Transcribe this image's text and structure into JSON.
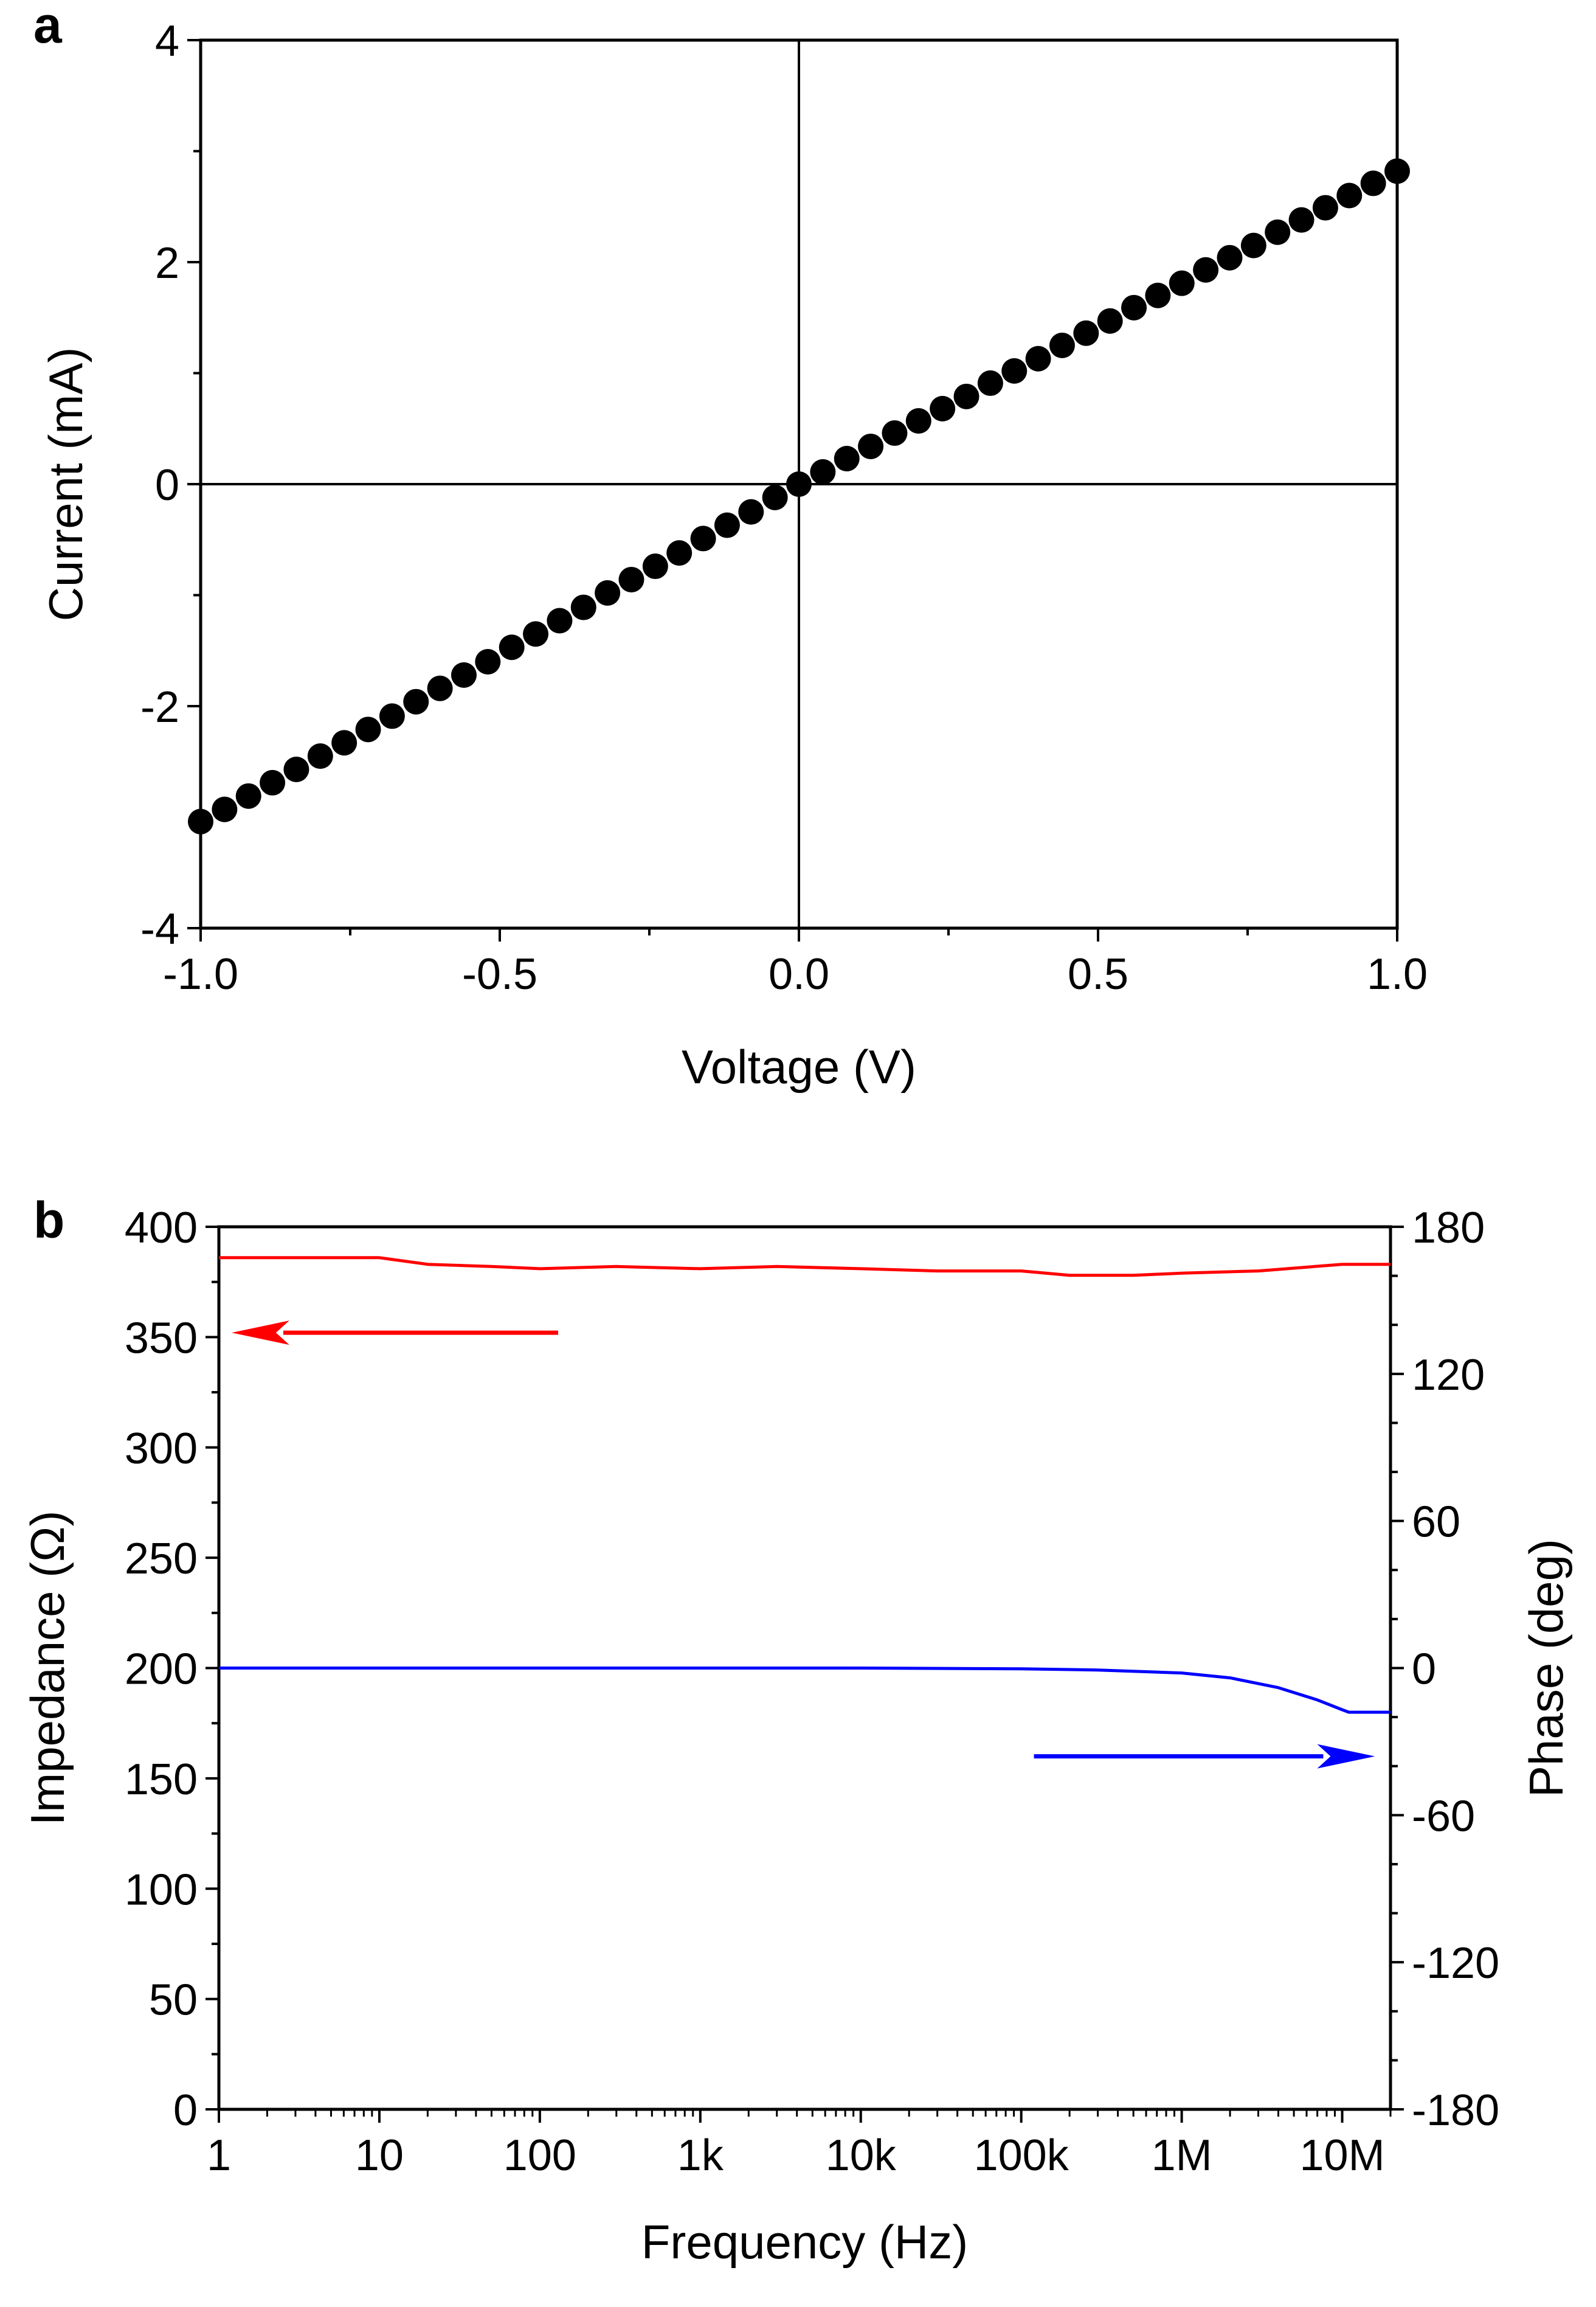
{
  "panels": [
    {
      "letter": "a"
    },
    {
      "letter": "b"
    }
  ],
  "colors": {
    "impedance": "#ff0000",
    "phase": "#0000ff",
    "points": "#000000"
  },
  "chart_data": [
    {
      "type": "scatter",
      "panel": "a",
      "title": "",
      "xlabel": "Voltage (V)",
      "ylabel": "Current (mA)",
      "xlim": [
        -1.0,
        1.0
      ],
      "ylim": [
        -4,
        4
      ],
      "xticks": [
        -1.0,
        -0.5,
        0.0,
        0.5,
        1.0
      ],
      "xtick_labels": [
        "-1.0",
        "-0.5",
        "0.0",
        "0.5",
        "1.0"
      ],
      "yticks": [
        -4,
        -2,
        0,
        2,
        4
      ],
      "ytick_labels": [
        "-4",
        "-2",
        "0",
        "2",
        "4"
      ],
      "zero_lines": true,
      "grid": false,
      "legend": "none",
      "series": [
        {
          "color": "#000000",
          "marker": "filled-circle",
          "x": [
            -1.0,
            -0.96,
            -0.92,
            -0.88,
            -0.84,
            -0.8,
            -0.76,
            -0.72,
            -0.68,
            -0.64,
            -0.6,
            -0.56,
            -0.52,
            -0.48,
            -0.44,
            -0.4,
            -0.36,
            -0.32,
            -0.28,
            -0.24,
            -0.2,
            -0.16,
            -0.12,
            -0.08,
            -0.04,
            0.0,
            0.04,
            0.08,
            0.12,
            0.16,
            0.2,
            0.24,
            0.28,
            0.32,
            0.36,
            0.4,
            0.44,
            0.48,
            0.52,
            0.56,
            0.6,
            0.64,
            0.68,
            0.72,
            0.76,
            0.8,
            0.84,
            0.88,
            0.92,
            0.96,
            1.0
          ],
          "y": [
            -3.04,
            -2.93,
            -2.81,
            -2.69,
            -2.57,
            -2.45,
            -2.33,
            -2.21,
            -2.09,
            -1.96,
            -1.84,
            -1.72,
            -1.6,
            -1.47,
            -1.35,
            -1.23,
            -1.11,
            -0.98,
            -0.86,
            -0.74,
            -0.62,
            -0.49,
            -0.37,
            -0.25,
            -0.12,
            0.0,
            0.11,
            0.23,
            0.34,
            0.46,
            0.57,
            0.68,
            0.79,
            0.91,
            1.02,
            1.13,
            1.25,
            1.36,
            1.47,
            1.59,
            1.7,
            1.81,
            1.93,
            2.04,
            2.15,
            2.27,
            2.38,
            2.49,
            2.6,
            2.71,
            2.82
          ]
        }
      ]
    },
    {
      "type": "line",
      "panel": "b",
      "title": "",
      "xlabel": "Frequency (Hz)",
      "ylabel": "Impedance (Ω)",
      "y2label": "Phase (deg)",
      "xscale": "log",
      "xlim": [
        1,
        20000000
      ],
      "xticks": [
        1,
        10,
        100,
        1000,
        10000,
        100000,
        1000000,
        10000000
      ],
      "xtick_labels": [
        "1",
        "10",
        "100",
        "1k",
        "10k",
        "100k",
        "1M",
        "10M"
      ],
      "ylim": [
        0,
        400
      ],
      "yticks": [
        0,
        50,
        100,
        150,
        200,
        250,
        300,
        350,
        400
      ],
      "ytick_labels": [
        "0",
        "50",
        "100",
        "150",
        "200",
        "250",
        "300",
        "350",
        "400"
      ],
      "y2lim": [
        -180,
        180
      ],
      "y2ticks": [
        -180,
        -120,
        -60,
        0,
        60,
        120,
        180
      ],
      "y2tick_labels": [
        "-180",
        "-120",
        "-60",
        "0",
        "60",
        "120",
        "180"
      ],
      "grid": false,
      "legend": "none",
      "series": [
        {
          "axis": "left",
          "color": "#ff0000",
          "x": [
            1,
            3,
            10,
            20,
            50,
            100,
            300,
            1000,
            3000,
            10000,
            30000,
            100000,
            200000,
            500000,
            1000000,
            3000000,
            10000000,
            20000000
          ],
          "y": [
            386,
            386,
            386,
            383,
            382,
            381,
            382,
            381,
            382,
            381,
            380,
            380,
            378,
            378,
            379,
            380,
            383,
            383
          ]
        },
        {
          "axis": "right",
          "color": "#0000ff",
          "x": [
            1,
            10,
            100,
            1000,
            10000,
            100000,
            300000,
            1000000,
            2000000,
            4000000,
            7000000,
            10000000,
            11000000,
            20000000
          ],
          "y": [
            0,
            0,
            0,
            0,
            0,
            -0.3,
            -0.8,
            -2,
            -4,
            -8,
            -13,
            -17,
            -18,
            -18
          ]
        }
      ],
      "annotations": [
        {
          "type": "arrow",
          "direction": "left",
          "color": "#ff0000",
          "points_to_axis": "left",
          "y": 352,
          "x_from": 130,
          "x_to": 1.2
        },
        {
          "type": "arrow",
          "direction": "right",
          "color": "#0000ff",
          "points_to_axis": "right",
          "y": -36,
          "x_from": 120000,
          "x_to": 16000000
        }
      ]
    }
  ]
}
